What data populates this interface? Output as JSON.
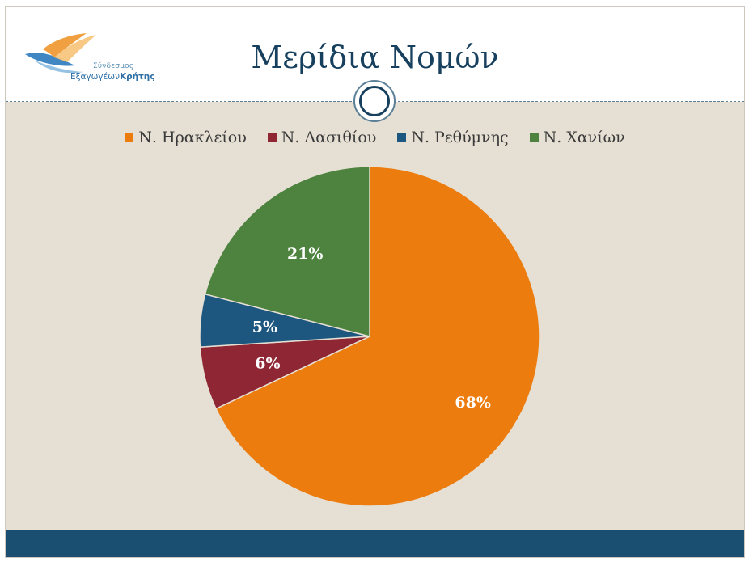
{
  "header": {
    "title": "Μερίδια Νομών",
    "logo": {
      "line1": "Σύνδεσμος",
      "line2_prefix": "Εξαγωγέων",
      "line2_bold": "Κρήτης"
    }
  },
  "colors": {
    "orange": "#ec7c0e",
    "red": "#8f2634",
    "blue": "#1d5780",
    "green": "#4d833f",
    "title": "#17405e",
    "footer": "#1b4f72"
  },
  "chart_data": {
    "type": "pie",
    "title": "",
    "legend_position": "top",
    "slices": [
      {
        "label": "Ν. Ηρακλείου",
        "value": 68,
        "display": "68%",
        "color": "#ec7c0e"
      },
      {
        "label": "Ν. Λασιθίου",
        "value": 6,
        "display": "6%",
        "color": "#8f2634"
      },
      {
        "label": "Ν. Ρεθύμνης",
        "value": 5,
        "display": "5%",
        "color": "#1d5780"
      },
      {
        "label": "Ν. Χανίων",
        "value": 21,
        "display": "21%",
        "color": "#4d833f"
      }
    ]
  }
}
